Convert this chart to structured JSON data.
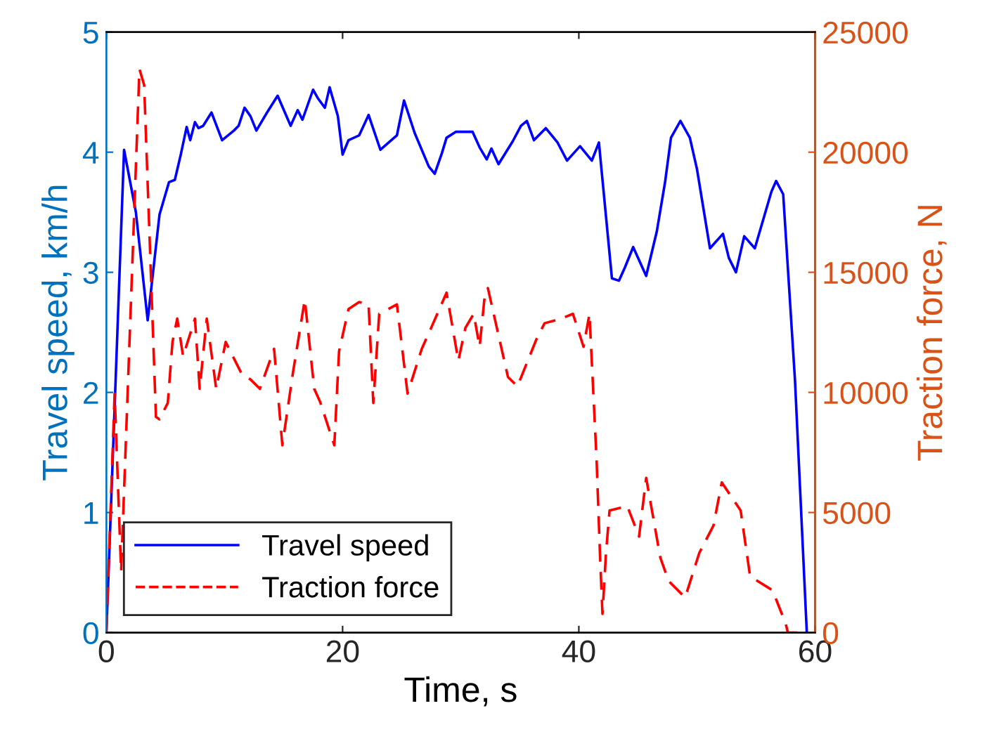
{
  "chart_data": {
    "type": "line",
    "xlabel": "Time, s",
    "ylabel": "Travel speed, km/h",
    "y2label": "Traction force, N",
    "xlim": [
      0,
      60
    ],
    "xticks": [
      0,
      20,
      40,
      60
    ],
    "ylim": [
      0,
      5
    ],
    "yticks": [
      0,
      1,
      2,
      3,
      4,
      5
    ],
    "y2lim": [
      0,
      25000
    ],
    "y2ticks": [
      0,
      5000,
      10000,
      15000,
      20000,
      25000
    ],
    "grid": false,
    "legend": "bottom left",
    "marker": "none",
    "series": [
      {
        "name": "Travel speed",
        "color": "#0000ff",
        "line_style": "solid",
        "x": [
          0,
          1.5,
          2.5,
          3.5,
          4.5,
          5.3,
          5.8,
          6.3,
          6.8,
          7.1,
          7.5,
          7.8,
          8.2,
          8.9,
          9.8,
          10.8,
          11.2,
          11.7,
          12.2,
          12.7,
          13.6,
          14.5,
          15.6,
          16.2,
          16.6,
          17.5,
          17.9,
          18.5,
          18.9,
          19.6,
          20.0,
          20.5,
          21.4,
          22.2,
          23.2,
          24.6,
          25.2,
          26.1,
          27.3,
          27.8,
          28.4,
          28.8,
          29.6,
          31.0,
          31.6,
          32.2,
          32.6,
          33.2,
          34.4,
          35.1,
          35.6,
          36.2,
          37.2,
          38.2,
          39.0,
          40.1,
          41.1,
          41.7,
          42.8,
          43.4,
          43.9,
          44.6,
          45.7,
          46.6,
          47.3,
          47.8,
          48.6,
          49.4,
          50.0,
          50.6,
          51.1,
          52.2,
          52.7,
          53.3,
          54.0,
          54.9,
          56.3,
          56.7,
          57.3,
          58.3,
          59.3
        ],
        "values": [
          0,
          4.02,
          3.5,
          2.6,
          3.48,
          3.75,
          3.77,
          3.98,
          4.21,
          4.1,
          4.25,
          4.2,
          4.22,
          4.33,
          4.1,
          4.18,
          4.22,
          4.37,
          4.3,
          4.18,
          4.33,
          4.47,
          4.22,
          4.35,
          4.27,
          4.52,
          4.45,
          4.37,
          4.54,
          4.3,
          3.98,
          4.1,
          4.14,
          4.31,
          4.02,
          4.14,
          4.43,
          4.16,
          3.88,
          3.82,
          3.99,
          4.12,
          4.17,
          4.17,
          4.04,
          3.94,
          4.03,
          3.9,
          4.09,
          4.22,
          4.26,
          4.1,
          4.2,
          4.08,
          3.93,
          4.05,
          3.93,
          4.08,
          2.95,
          2.93,
          3.04,
          3.21,
          2.97,
          3.34,
          3.75,
          4.12,
          4.26,
          4.12,
          3.86,
          3.5,
          3.2,
          3.32,
          3.12,
          3.0,
          3.3,
          3.2,
          3.67,
          3.76,
          3.65,
          2.1,
          0
        ]
      },
      {
        "name": "Traction force",
        "color": "#ff0000",
        "line_style": "dashed",
        "axis": "y2",
        "x": [
          0,
          0.7,
          1.25,
          2.8,
          3.2,
          4.2,
          4.5,
          5.2,
          5.6,
          6.0,
          6.5,
          7.5,
          7.9,
          8.5,
          9.3,
          10.1,
          11.5,
          12.2,
          13.0,
          14.2,
          14.9,
          15.8,
          16.8,
          17.6,
          18.1,
          19.3,
          19.7,
          20.5,
          21.4,
          22.2,
          22.6,
          23.1,
          24.6,
          25.5,
          26.7,
          27.5,
          28.8,
          29.8,
          30.4,
          31.1,
          31.6,
          32.0,
          32.3,
          34.0,
          34.8,
          36.4,
          37.1,
          38.5,
          39.5,
          40.4,
          40.9,
          41.5,
          41.8,
          42.0,
          42.3,
          42.6,
          44.1,
          45.1,
          45.7,
          46.9,
          47.6,
          49.0,
          50.2,
          51.4,
          52.1,
          53.7,
          54.5,
          56.4,
          57.5,
          57.7,
          59.1
        ],
        "values": [
          0,
          9950,
          2540,
          23460,
          22800,
          8980,
          8880,
          9560,
          12100,
          13070,
          11500,
          13070,
          10150,
          13070,
          10150,
          12100,
          10730,
          10540,
          10150,
          11810,
          7800,
          10830,
          13860,
          10150,
          9600,
          7800,
          11710,
          13470,
          13760,
          13660,
          9560,
          13270,
          13660,
          9950,
          11810,
          12690,
          14150,
          11320,
          12690,
          13270,
          11900,
          13860,
          14340,
          10640,
          10250,
          12200,
          12880,
          13070,
          13270,
          11900,
          13270,
          7220,
          3120,
          780,
          3320,
          5080,
          5270,
          4000,
          6440,
          3120,
          2150,
          1460,
          3320,
          4460,
          6250,
          5080,
          2340,
          1760,
          390,
          0,
          0
        ]
      }
    ]
  }
}
